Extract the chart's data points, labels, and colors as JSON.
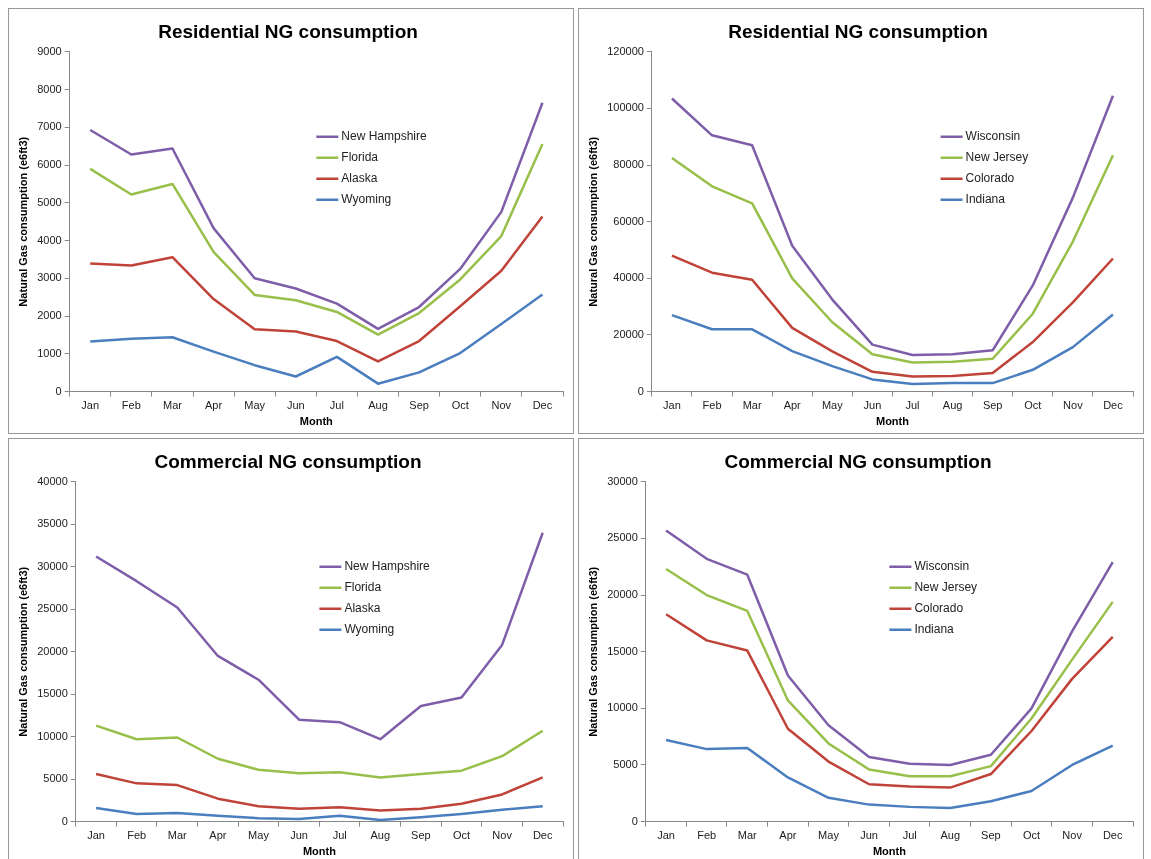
{
  "chart_data": [
    {
      "type": "line",
      "title": "Residential NG consumption",
      "xlabel": "Month",
      "ylabel": "Natural Gas consumption (e6ft3)",
      "categories": [
        "Jan",
        "Feb",
        "Mar",
        "Apr",
        "May",
        "Jun",
        "Jul",
        "Aug",
        "Sep",
        "Oct",
        "Nov",
        "Dec"
      ],
      "ylim": [
        0,
        9000
      ],
      "yticks": [
        0,
        1000,
        2000,
        3000,
        4000,
        5000,
        6000,
        7000,
        8000,
        9000
      ],
      "grid": false,
      "legend": "top",
      "marker": "none",
      "series": [
        {
          "name": "New Hampshire",
          "color": "#7e5ea8",
          "values": [
            6930,
            6280,
            6440,
            4330,
            3000,
            2730,
            2330,
            1660,
            2240,
            3250,
            4760,
            7650
          ]
        },
        {
          "name": "Florida",
          "color": "#98bf4a",
          "values": [
            5900,
            5220,
            5500,
            3700,
            2560,
            2420,
            2110,
            1510,
            2080,
            2970,
            4120,
            6560
          ]
        },
        {
          "name": "Alaska",
          "color": "#c0433a",
          "values": [
            3390,
            3340,
            3560,
            2450,
            1650,
            1590,
            1340,
            800,
            1340,
            2260,
            3200,
            4640
          ]
        },
        {
          "name": "Wyoming",
          "color": "#4a7ebf",
          "values": [
            1330,
            1400,
            1440,
            1060,
            700,
            400,
            920,
            210,
            510,
            1020,
            1790,
            2570
          ]
        }
      ]
    },
    {
      "type": "line",
      "title": "Residential NG consumption",
      "xlabel": "Month",
      "ylabel": "Natural Gas consumption (e6ft3)",
      "categories": [
        "Jan",
        "Feb",
        "Mar",
        "Apr",
        "May",
        "Jun",
        "Jul",
        "Aug",
        "Sep",
        "Oct",
        "Nov",
        "Dec"
      ],
      "ylim": [
        0,
        120000
      ],
      "yticks": [
        0,
        20000,
        40000,
        60000,
        80000,
        100000,
        120000
      ],
      "grid": false,
      "legend": "top right",
      "marker": "none",
      "series": [
        {
          "name": "Wisconsin",
          "color": "#7e5ea8",
          "values": [
            103500,
            90500,
            87000,
            51500,
            32500,
            16600,
            12900,
            13200,
            14600,
            37500,
            68500,
            104500
          ]
        },
        {
          "name": "New Jersey",
          "color": "#98bf4a",
          "values": [
            82500,
            72500,
            66500,
            40000,
            24500,
            13200,
            10300,
            10500,
            11600,
            27500,
            53000,
            83500
          ]
        },
        {
          "name": "Colorado",
          "color": "#c0433a",
          "values": [
            48000,
            42000,
            39500,
            22500,
            14200,
            7000,
            5300,
            5500,
            6600,
            17500,
            31500,
            47000
          ]
        },
        {
          "name": "Indiana",
          "color": "#4a7ebf",
          "values": [
            27000,
            22000,
            22000,
            14300,
            9000,
            4300,
            2700,
            3000,
            3000,
            7700,
            15700,
            27200
          ]
        }
      ]
    },
    {
      "type": "line",
      "title": "Commercial NG consumption",
      "xlabel": "Month",
      "ylabel": "Natural Gas consumption (e6ft3)",
      "categories": [
        "Jan",
        "Feb",
        "Mar",
        "Apr",
        "May",
        "Jun",
        "Jul",
        "Aug",
        "Sep",
        "Oct",
        "Nov",
        "Dec"
      ],
      "ylim": [
        0,
        40000
      ],
      "yticks": [
        0,
        5000,
        10000,
        15000,
        20000,
        25000,
        30000,
        35000,
        40000
      ],
      "grid": false,
      "legend": "top",
      "marker": "none",
      "series": [
        {
          "name": "New Hampshire",
          "color": "#7e5ea8",
          "values": [
            31200,
            28300,
            25200,
            19500,
            16700,
            12000,
            11700,
            9700,
            13600,
            14600,
            20800,
            34000
          ]
        },
        {
          "name": "Florida",
          "color": "#98bf4a",
          "values": [
            11300,
            9700,
            9900,
            7400,
            6100,
            5700,
            5800,
            5200,
            5600,
            6000,
            7700,
            10700
          ]
        },
        {
          "name": "Alaska",
          "color": "#c0433a",
          "values": [
            5600,
            4500,
            4300,
            2700,
            1800,
            1500,
            1700,
            1300,
            1500,
            2100,
            3200,
            5200
          ]
        },
        {
          "name": "Wyoming",
          "color": "#4a7ebf",
          "values": [
            1600,
            900,
            1000,
            700,
            400,
            300,
            700,
            200,
            500,
            900,
            1400,
            1800
          ]
        }
      ]
    },
    {
      "type": "line",
      "title": "Commercial NG consumption",
      "xlabel": "Month",
      "ylabel": "Natural Gas consumption (e6ft3)",
      "categories": [
        "Jan",
        "Feb",
        "Mar",
        "Apr",
        "May",
        "Jun",
        "Jul",
        "Aug",
        "Sep",
        "Oct",
        "Nov",
        "Dec"
      ],
      "ylim": [
        0,
        30000
      ],
      "yticks": [
        0,
        5000,
        10000,
        15000,
        20000,
        25000,
        30000
      ],
      "grid": false,
      "legend": "top",
      "marker": "none",
      "series": [
        {
          "name": "Wisconsin",
          "color": "#7e5ea8",
          "values": [
            25700,
            23200,
            21800,
            12900,
            8500,
            5700,
            5100,
            5000,
            5900,
            10000,
            16800,
            22900
          ]
        },
        {
          "name": "New Jersey",
          "color": "#98bf4a",
          "values": [
            22300,
            20000,
            18600,
            10700,
            6900,
            4600,
            4000,
            4000,
            4900,
            9100,
            14300,
            19400
          ]
        },
        {
          "name": "Colorado",
          "color": "#c0433a",
          "values": [
            18300,
            16000,
            15100,
            8200,
            5300,
            3300,
            3100,
            3000,
            4200,
            8000,
            12600,
            16300
          ]
        },
        {
          "name": "Indiana",
          "color": "#4a7ebf",
          "values": [
            7200,
            6400,
            6500,
            3900,
            2100,
            1500,
            1300,
            1200,
            1800,
            2700,
            5000,
            6700
          ]
        }
      ]
    }
  ]
}
